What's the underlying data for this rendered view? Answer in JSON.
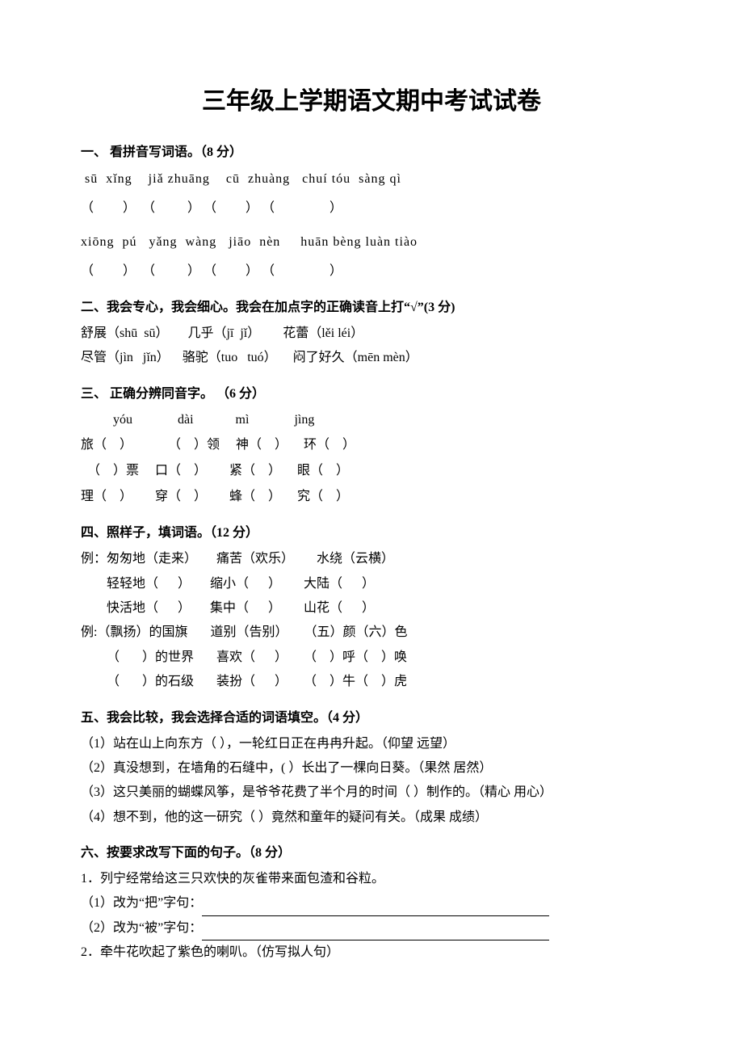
{
  "title": "三年级上学期语文期中考试试卷",
  "s1": {
    "head": "一、  看拼音写词语。（8 分）",
    "row1": " sū  xǐng    jiǎ zhuāng    cū  zhuàng   chuí tóu  sàng qì",
    "row1b": "（         ）  （          ） （         ） （                 ）",
    "row2": "xiōng  pú   yǎng  wàng   jiāo  nèn     huān bèng luàn tiào",
    "row2b": "（         ）  （          ） （         ） （                 ）"
  },
  "s2": {
    "head": "二、我会专心，我会细心。我会在加点字的正确读音上打“√”(3 分)",
    "l1": "舒展（shū  sū）      几乎（jī  jǐ）       花蕾（lěi léi）",
    "l2": "尽管（jìn   jǐn）    骆驼（tuo   tuó）     闷了好久（mēn mèn）"
  },
  "s3": {
    "head": "三、  正确分辨同音字。  （6 分）",
    "hdr": "yóu              dài             mì              jìng",
    "r1": "旅（    ）           （    ）领     神（    ）     环（    ）",
    "r2": "  （    ）票     口（    ）       紧（    ）     眼（    ）",
    "r3": "理（    ）       穿（    ）       蜂（    ）     究（    ）"
  },
  "s4": {
    "head": "四、照样子，填词语。（12 分）",
    "e1": "例：匆匆地（走来）      痛苦（欢乐）       水绕（云横）",
    "r1": "轻轻地（      ）      缩小（      ）       大陆（      ）",
    "r2": "快活地（      ）      集中（      ）       山花（      ）",
    "e2": "例:（飘扬）的国旗       道别（告别）     （五）颜（六）色",
    "r3": "（       ）的世界       喜欢（      ）     （    ）呼（    ）唤",
    "r4": "（       ）的石级       装扮（      ）     （    ）牛（    ）虎"
  },
  "s5": {
    "head": "五、我会比较，我会选择合适的词语填空。（4 分）",
    "l1": "（1）站在山上向东方（      ），一轮红日正在冉冉升起。（仰望  远望）",
    "l2": "（2）真没想到，在墙角的石缝中，(      ）长出了一棵向日葵。（果然  居然）",
    "l3": "（3）这只美丽的蝴蝶风筝，是爷爷花费了半个月的时间（      ）制作的。（精心  用心）",
    "l4": "（4）想不到，他的这一研究（      ）竟然和童年的疑问有关。（成果  成绩）"
  },
  "s6": {
    "head": "六、按要求改写下面的句子。（8 分）",
    "q1": "1．列宁经常给这三只欢快的灰雀带来面包渣和谷粒。",
    "q1a": "（1）改为“把”字句：",
    "q1b": "（2）改为“被”字句：",
    "q2": " 2．牵牛花吹起了紫色的喇叭。（仿写拟人句）"
  }
}
